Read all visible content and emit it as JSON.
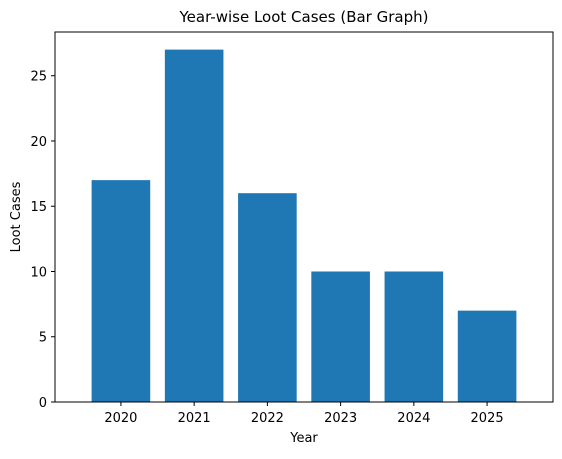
{
  "chart_data": {
    "type": "bar",
    "title": "Year-wise Loot Cases (Bar Graph)",
    "xlabel": "Year",
    "ylabel": "Loot Cases",
    "categories": [
      "2020",
      "2021",
      "2022",
      "2023",
      "2024",
      "2025"
    ],
    "values": [
      17,
      27,
      16,
      10,
      10,
      7
    ],
    "ylim": [
      0,
      28.35
    ],
    "yticks": [
      0,
      5,
      10,
      15,
      20,
      25
    ],
    "grid": false,
    "colors": {
      "bar": "#1f77b4",
      "axes": "#000000",
      "background": "#ffffff"
    }
  }
}
